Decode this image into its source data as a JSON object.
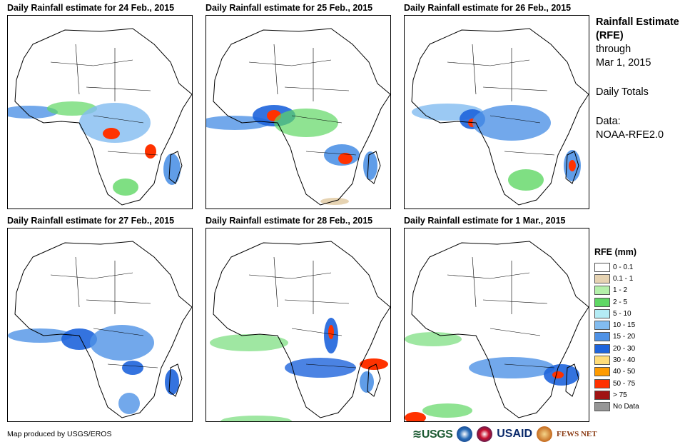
{
  "panels": [
    {
      "title": "Daily Rainfall estimate for 24 Feb., 2015"
    },
    {
      "title": "Daily Rainfall estimate for 25 Feb., 2015"
    },
    {
      "title": "Daily Rainfall estimate for 26 Feb., 2015"
    },
    {
      "title": "Daily Rainfall estimate for 27 Feb., 2015"
    },
    {
      "title": "Daily Rainfall estimate for 28 Feb., 2015"
    },
    {
      "title": "Daily Rainfall estimate for 1 Mar., 2015"
    }
  ],
  "side_text": {
    "title": "Rainfall Estimate (RFE)",
    "through_label": "through",
    "through_date": "Mar 1, 2015",
    "totals": "Daily Totals",
    "data_label": "Data:",
    "data_source": "NOAA-RFE2.0"
  },
  "legend": {
    "title": "RFE (mm)",
    "items": [
      {
        "label": "0 - 0.1",
        "color": "#ffffff"
      },
      {
        "label": "0.1 - 1",
        "color": "#e6d3b2"
      },
      {
        "label": "1 - 2",
        "color": "#b4f0aa"
      },
      {
        "label": "2 - 5",
        "color": "#5fd764"
      },
      {
        "label": "5 - 10",
        "color": "#b4ecf5"
      },
      {
        "label": "10 - 15",
        "color": "#82bcf0"
      },
      {
        "label": "15 - 20",
        "color": "#4f92e6"
      },
      {
        "label": "20 - 30",
        "color": "#1e64dc"
      },
      {
        "label": "30 - 40",
        "color": "#ffdc78"
      },
      {
        "label": "40 - 50",
        "color": "#ff9b00"
      },
      {
        "label": "50 - 75",
        "color": "#ff3200"
      },
      {
        "label": "> 75",
        "color": "#a01414"
      },
      {
        "label": "No Data",
        "color": "#969696"
      }
    ]
  },
  "credit": "Map produced by USGS/EROS",
  "logos": {
    "usgs": "≋USGS",
    "usaid": "USAID",
    "fews": "FEWS NET"
  }
}
